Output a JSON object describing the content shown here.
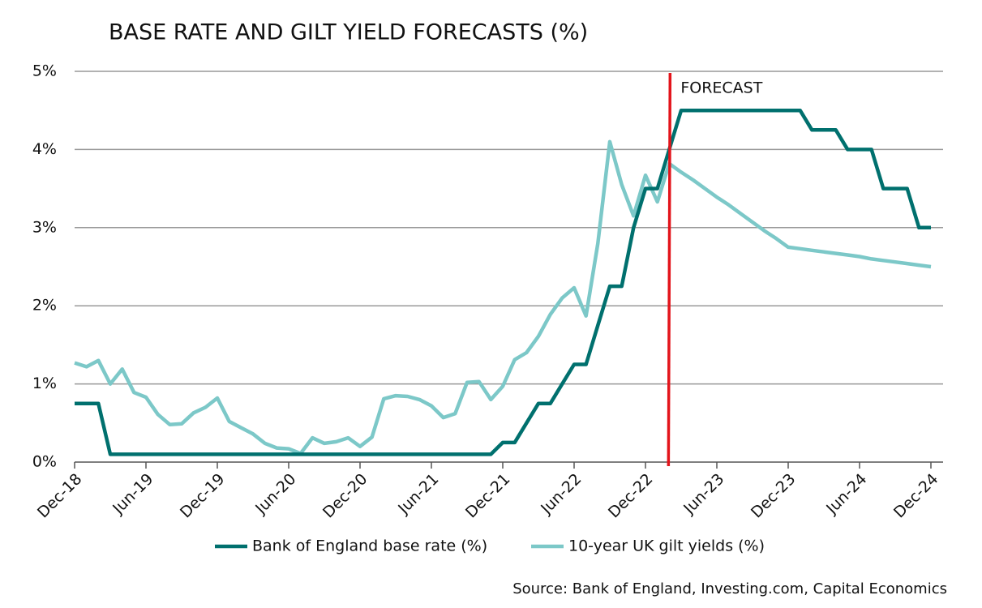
{
  "chart_data": {
    "type": "line",
    "title": "BASE RATE AND GILT YIELD FORECASTS (%)",
    "source": "Source: Bank of England, Investing.com, Capital Economics",
    "categories": [
      "Dec-18",
      null,
      null,
      null,
      null,
      null,
      "Jun-19",
      null,
      null,
      null,
      null,
      null,
      "Dec-19",
      null,
      null,
      null,
      null,
      null,
      "Jun-20",
      null,
      null,
      null,
      null,
      null,
      "Dec-20",
      null,
      null,
      null,
      null,
      null,
      "Jun-21",
      null,
      null,
      null,
      null,
      null,
      "Dec-21",
      null,
      null,
      null,
      null,
      null,
      "Jun-22",
      null,
      null,
      null,
      null,
      null,
      "Dec-22",
      null,
      null,
      null,
      null,
      null,
      "Jun-23",
      null,
      null,
      null,
      null,
      null,
      "Dec-23",
      null,
      null,
      null,
      null,
      null,
      "Jun-24",
      null,
      null,
      null,
      null,
      null,
      "Dec-24"
    ],
    "series": [
      {
        "name": "Bank of England base rate (%)",
        "color": "#00706e",
        "values": [
          0.75,
          0.75,
          0.75,
          0.1,
          0.1,
          0.1,
          0.1,
          0.1,
          0.1,
          0.1,
          0.1,
          0.1,
          0.1,
          0.1,
          0.1,
          0.1,
          0.1,
          0.1,
          0.1,
          0.1,
          0.1,
          0.1,
          0.1,
          0.1,
          0.1,
          0.1,
          0.1,
          0.1,
          0.1,
          0.1,
          0.1,
          0.1,
          0.1,
          0.1,
          0.1,
          0.1,
          0.25,
          0.25,
          0.5,
          0.75,
          0.75,
          1.0,
          1.25,
          1.25,
          1.75,
          2.25,
          2.25,
          3.0,
          3.5,
          3.5,
          4.0,
          4.5,
          4.5,
          4.5,
          4.5,
          4.5,
          4.5,
          4.5,
          4.5,
          4.5,
          4.5,
          4.5,
          4.25,
          4.25,
          4.25,
          4.0,
          4.0,
          4.0,
          3.5,
          3.5,
          3.5,
          3.0,
          3.0
        ]
      },
      {
        "name": "10-year UK gilt yields (%)",
        "color": "#7cc8c8",
        "values": [
          1.27,
          1.22,
          1.3,
          1.0,
          1.19,
          0.89,
          0.83,
          0.61,
          0.48,
          0.49,
          0.63,
          0.7,
          0.82,
          0.52,
          0.44,
          0.36,
          0.24,
          0.18,
          0.17,
          0.11,
          0.31,
          0.24,
          0.26,
          0.31,
          0.2,
          0.32,
          0.81,
          0.85,
          0.84,
          0.8,
          0.72,
          0.57,
          0.62,
          1.02,
          1.03,
          0.8,
          0.97,
          1.31,
          1.4,
          1.61,
          1.89,
          2.1,
          2.23,
          1.87,
          2.8,
          4.1,
          3.55,
          3.15,
          3.67,
          3.33,
          3.82,
          3.71,
          3.61,
          3.5,
          3.39,
          3.29,
          3.18,
          3.07,
          2.96,
          2.86,
          2.75,
          2.73,
          2.71,
          2.69,
          2.67,
          2.65,
          2.63,
          2.6,
          2.58,
          2.56,
          2.54,
          2.52,
          2.5
        ]
      }
    ],
    "ylim": [
      0,
      5
    ],
    "yticks": [
      {
        "value": 0,
        "label": "0%"
      },
      {
        "value": 1,
        "label": "1%"
      },
      {
        "value": 2,
        "label": "2%"
      },
      {
        "value": 3,
        "label": "3%"
      },
      {
        "value": 4,
        "label": "4%"
      },
      {
        "value": 5,
        "label": "5%"
      }
    ],
    "grid": true,
    "legend": "bottom",
    "annotations": [
      {
        "text": "FORECAST",
        "x": 50,
        "color": "#e3141b"
      }
    ]
  }
}
